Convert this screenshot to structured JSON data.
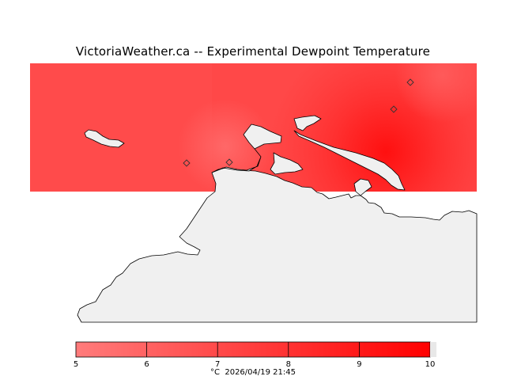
{
  "title": "VictoriaWeather.ca -- Experimental Dewpoint Temperature",
  "colors": {
    "field_low": "#ff7b7b",
    "field_mid": "#ff4444",
    "field_high": "#ff0000",
    "land": "#f0f0f0",
    "coast": "#000000"
  },
  "legend": {
    "unit": "°C",
    "timestamp": "2026/04/19 21:45",
    "ticks": [
      "5",
      "6",
      "7",
      "8",
      "9",
      "10"
    ],
    "min": 5,
    "max": 10
  },
  "stations": [
    {
      "icon": "station-diamond-icon"
    },
    {
      "icon": "station-diamond-icon"
    },
    {
      "icon": "station-diamond-icon"
    },
    {
      "icon": "station-diamond-icon"
    }
  ]
}
